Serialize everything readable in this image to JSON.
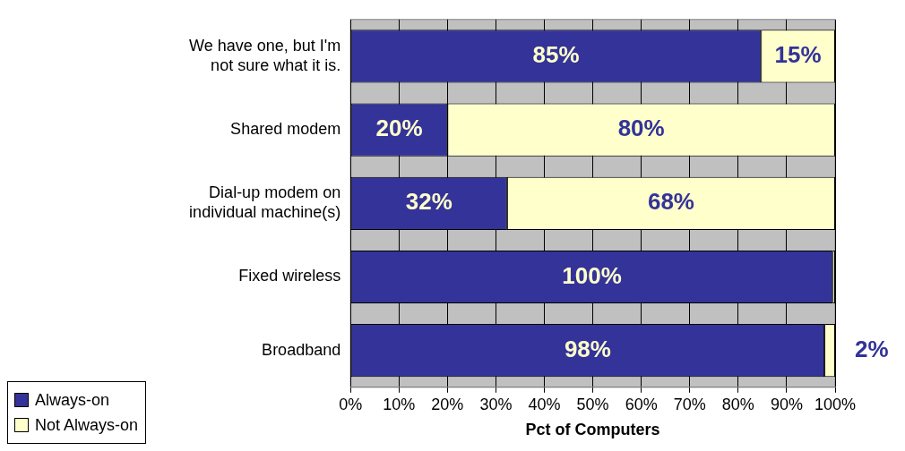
{
  "chart_data": {
    "type": "bar",
    "orientation": "horizontal",
    "stacked": true,
    "categories": [
      "We have one, but I'm not sure what it is.",
      "Shared modem",
      "Dial-up modem on individual machine(s)",
      "Fixed wireless",
      "Broadband"
    ],
    "series": [
      {
        "name": "Always-on",
        "color": "#333399",
        "values": [
          84.7,
          20,
          32.3,
          99.5,
          97.8
        ],
        "value_labels": [
          "85%",
          "20%",
          "32%",
          "100%",
          "98%"
        ]
      },
      {
        "name": "Not Always-on",
        "color": "#ffffcc",
        "values": [
          15.3,
          80,
          67.7,
          0.5,
          2.2
        ],
        "value_labels": [
          "15%",
          "80%",
          "68%",
          null,
          "2%"
        ]
      }
    ],
    "xlabel": "Pct of Computers",
    "xlim": [
      0,
      100
    ],
    "xticks": [
      {
        "value": 0,
        "label": "0%"
      },
      {
        "value": 10,
        "label": "10%"
      },
      {
        "value": 20,
        "label": "20%"
      },
      {
        "value": 30,
        "label": "30%"
      },
      {
        "value": 40,
        "label": "40%"
      },
      {
        "value": 50,
        "label": "50%"
      },
      {
        "value": 60,
        "label": "60%"
      },
      {
        "value": 70,
        "label": "70%"
      },
      {
        "value": 80,
        "label": "80%"
      },
      {
        "value": 90,
        "label": "90%"
      },
      {
        "value": 100,
        "label": "100%"
      }
    ],
    "grid": "x",
    "legend": "bottom left"
  }
}
